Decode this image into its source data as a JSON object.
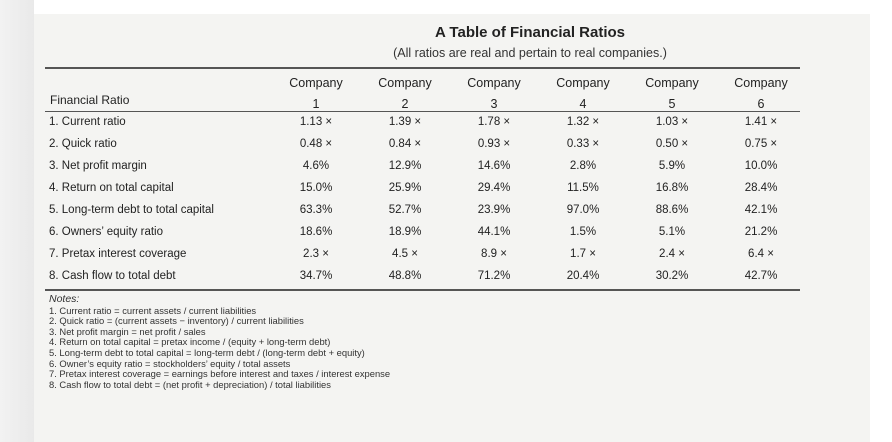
{
  "title": "A Table of Financial Ratios",
  "subtitle": "(All ratios are real and pertain to real companies.)",
  "table": {
    "row_header": "Financial Ratio",
    "columns": [
      {
        "line1": "Company",
        "line2": "1"
      },
      {
        "line1": "Company",
        "line2": "2"
      },
      {
        "line1": "Company",
        "line2": "3"
      },
      {
        "line1": "Company",
        "line2": "4"
      },
      {
        "line1": "Company",
        "line2": "5"
      },
      {
        "line1": "Company",
        "line2": "6"
      }
    ],
    "rows": [
      {
        "label": "1. Current ratio",
        "values": [
          "1.13 ×",
          "1.39 ×",
          "1.78 ×",
          "1.32 ×",
          "1.03 ×",
          "1.41 ×"
        ]
      },
      {
        "label": "2. Quick ratio",
        "values": [
          "0.48 ×",
          "0.84 ×",
          "0.93 ×",
          "0.33 ×",
          "0.50 ×",
          "0.75 ×"
        ]
      },
      {
        "label": "3. Net profit margin",
        "values": [
          "4.6%",
          "12.9%",
          "14.6%",
          "2.8%",
          "5.9%",
          "10.0%"
        ]
      },
      {
        "label": "4. Return on total capital",
        "values": [
          "15.0%",
          "25.9%",
          "29.4%",
          "11.5%",
          "16.8%",
          "28.4%"
        ]
      },
      {
        "label": "5. Long-term debt to total capital",
        "values": [
          "63.3%",
          "52.7%",
          "23.9%",
          "97.0%",
          "88.6%",
          "42.1%"
        ]
      },
      {
        "label": "6. Owners’ equity ratio",
        "values": [
          "18.6%",
          "18.9%",
          "44.1%",
          "1.5%",
          "5.1%",
          "21.2%"
        ]
      },
      {
        "label": "7. Pretax interest coverage",
        "values": [
          "2.3 ×",
          "4.5 ×",
          "8.9 ×",
          "1.7 ×",
          "2.4 ×",
          "6.4 ×"
        ]
      },
      {
        "label": "8. Cash flow to total debt",
        "values": [
          "34.7%",
          "48.8%",
          "71.2%",
          "20.4%",
          "30.2%",
          "42.7%"
        ]
      }
    ]
  },
  "notes": {
    "heading": "Notes:",
    "items": [
      "1. Current ratio = current assets / current liabilities",
      "2. Quick ratio = (current assets − inventory) / current liabilities",
      "3. Net profit margin = net profit / sales",
      "4. Return on total capital = pretax income / (equity + long-term debt)",
      "5. Long-term debt to total capital = long-term debt / (long-term debt + equity)",
      "6. Owner’s equity ratio = stockholders’ equity / total assets",
      "7. Pretax interest coverage = earnings before interest and taxes / interest expense",
      "8. Cash flow to total debt = (net profit + depreciation) / total liabilities"
    ]
  }
}
